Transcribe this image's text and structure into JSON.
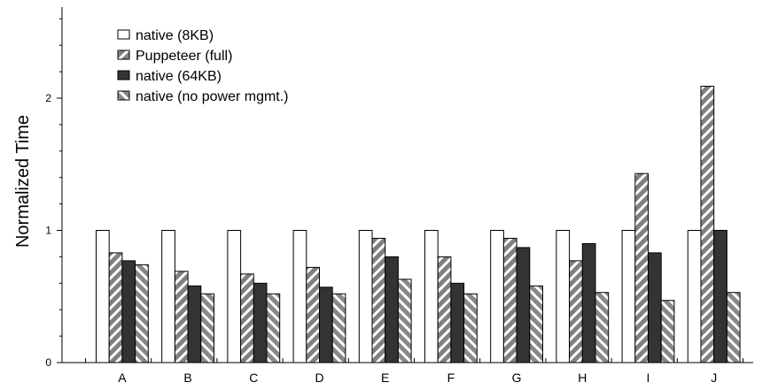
{
  "chart_data": {
    "type": "bar",
    "ylabel": "Normalized Time",
    "xlabel": "",
    "ylim": [
      0,
      2.7
    ],
    "yticks_major": [
      0,
      1,
      2
    ],
    "yticks_minor_step": 0.2,
    "grid": false,
    "legend_position": "top-left",
    "categories": [
      "A",
      "B",
      "C",
      "D",
      "E",
      "F",
      "G",
      "H",
      "I",
      "J"
    ],
    "series": [
      {
        "name": "native (8KB)",
        "pattern": "white",
        "values": [
          1.0,
          1.0,
          1.0,
          1.0,
          1.0,
          1.0,
          1.0,
          1.0,
          1.0,
          1.0
        ]
      },
      {
        "name": "Puppeteer (full)",
        "pattern": "gray-hatch",
        "values": [
          0.83,
          0.69,
          0.67,
          0.72,
          0.94,
          0.8,
          0.94,
          0.77,
          1.43,
          2.09
        ]
      },
      {
        "name": "native (64KB)",
        "pattern": "dark",
        "values": [
          0.77,
          0.58,
          0.6,
          0.57,
          0.8,
          0.6,
          0.87,
          0.9,
          0.83,
          1.0
        ]
      },
      {
        "name": "native (no power mgmt.)",
        "pattern": "light-hatch",
        "values": [
          0.74,
          0.52,
          0.52,
          0.52,
          0.63,
          0.52,
          0.58,
          0.53,
          0.47,
          0.53
        ]
      }
    ],
    "colors": {
      "white_fill": "#ffffff",
      "dark_fill": "#333333",
      "hatch_gray": "#808080",
      "stroke": "#000000"
    }
  }
}
